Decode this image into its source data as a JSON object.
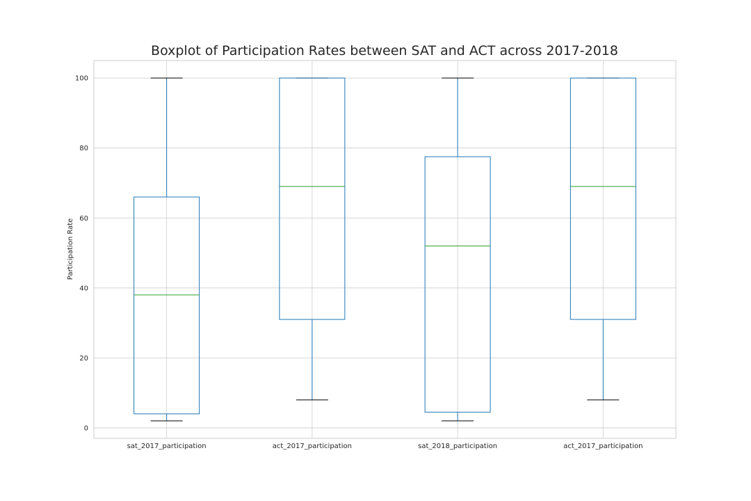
{
  "chart_data": {
    "type": "box",
    "title": "Boxplot of Participation Rates between SAT and ACT across 2017-2018",
    "xlabel": "",
    "ylabel": "Participation Rate",
    "ylim": [
      -3,
      105
    ],
    "yticks": [
      0,
      20,
      40,
      60,
      80,
      100
    ],
    "grid": true,
    "categories": [
      "sat_2017_participation",
      "act_2017_participation",
      "sat_2018_participation",
      "act_2017_participation"
    ],
    "series": [
      {
        "min": 2,
        "q1": 4,
        "median": 38,
        "q3": 66,
        "max": 100
      },
      {
        "min": 8,
        "q1": 31,
        "median": 69,
        "q3": 100,
        "max": 100
      },
      {
        "min": 2,
        "q1": 4.5,
        "median": 52,
        "q3": 77.5,
        "max": 100
      },
      {
        "min": 8,
        "q1": 31,
        "median": 69,
        "q3": 100,
        "max": 100
      }
    ],
    "colors": {
      "box": "#1f77b4",
      "median": "#2ca02c",
      "cap": "#000000",
      "grid": "#cccccc"
    }
  }
}
